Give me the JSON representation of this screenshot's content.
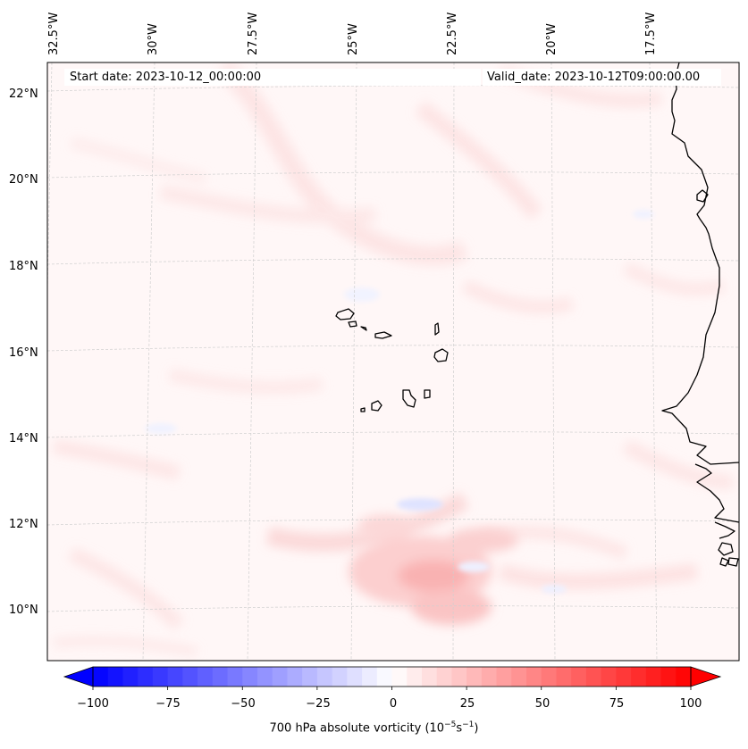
{
  "map": {
    "start_date": "Start date: 2023-10-12_00:00:00",
    "valid_date": "Valid_date: 2023-10-12T09:00:00.00",
    "lon_labels": [
      "32.5°W",
      "30°W",
      "27.5°W",
      "25°W",
      "22.5°W",
      "20°W",
      "17.5°W"
    ],
    "lat_labels": [
      "22°N",
      "20°N",
      "18°N",
      "16°N",
      "14°N",
      "12°N",
      "10°N"
    ],
    "field": "700 hPa absolute vorticity",
    "colors": {
      "negative": "#0000ff",
      "neutral": "#ffffff",
      "positive": "#ff0000",
      "coast": "#000000"
    }
  },
  "colorbar": {
    "label": "700 hPa absolute vorticity (10",
    "label_exp1": "−5",
    "label_mid": "s",
    "label_exp2": "−1",
    "label_end": ")",
    "ticks": [
      "−100",
      "−75",
      "−50",
      "−25",
      "0",
      "25",
      "50",
      "75",
      "100"
    ],
    "min": -100,
    "max": 100
  }
}
